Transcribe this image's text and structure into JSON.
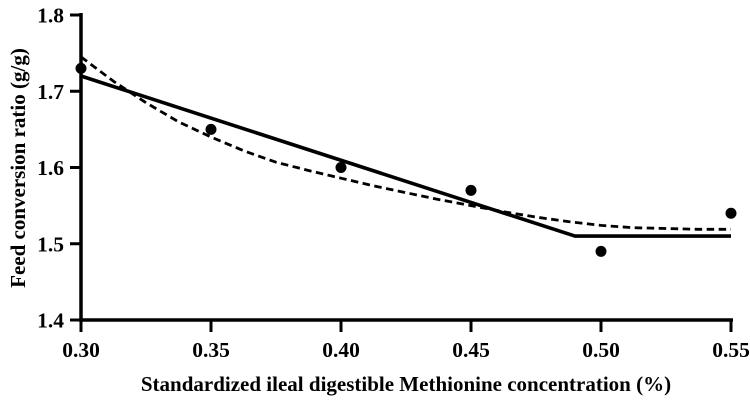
{
  "chart_data": {
    "type": "scatter",
    "title": "",
    "xlabel": "Standardized ileal digestible Methionine concentration (%)",
    "ylabel": "Feed conversion ratio (g/g)",
    "xlim": [
      0.3,
      0.55
    ],
    "ylim": [
      1.4,
      1.8
    ],
    "grid": false,
    "legend_position": "none",
    "axis_color": "#000000",
    "x_ticks": [
      0.3,
      0.35,
      0.4,
      0.45,
      0.5,
      0.55
    ],
    "x_tick_labels": [
      "0.30",
      "0.35",
      "0.40",
      "0.45",
      "0.50",
      "0.55"
    ],
    "y_ticks": [
      1.8,
      1.7,
      1.6,
      1.5,
      1.4
    ],
    "y_tick_labels": [
      "1.8",
      "1.7",
      "1.6",
      "1.5",
      "1.4"
    ],
    "series": [
      {
        "name": "observed-fcr",
        "type": "scatter",
        "marker": "filled-circle",
        "color": "#000000",
        "points": [
          [
            0.3,
            1.73
          ],
          [
            0.35,
            1.65
          ],
          [
            0.4,
            1.6
          ],
          [
            0.45,
            1.57
          ],
          [
            0.5,
            1.49
          ],
          [
            0.55,
            1.54
          ]
        ]
      },
      {
        "name": "broken-line-model",
        "type": "line",
        "style": "solid",
        "color": "#000000",
        "breakpoint_x": 0.49,
        "plateau_y": 1.51,
        "points": [
          [
            0.3,
            1.72
          ],
          [
            0.49,
            1.51
          ],
          [
            0.55,
            1.51
          ]
        ]
      },
      {
        "name": "quadratic-model",
        "type": "line",
        "style": "dashed",
        "color": "#000000",
        "points": [
          [
            0.3,
            1.745
          ],
          [
            0.3125,
            1.713
          ],
          [
            0.325,
            1.685
          ],
          [
            0.3375,
            1.66
          ],
          [
            0.35,
            1.64
          ],
          [
            0.3625,
            1.622
          ],
          [
            0.375,
            1.607
          ],
          [
            0.3875,
            1.596
          ],
          [
            0.4,
            1.586
          ],
          [
            0.4125,
            1.576
          ],
          [
            0.425,
            1.567
          ],
          [
            0.4375,
            1.558
          ],
          [
            0.45,
            1.55
          ],
          [
            0.4625,
            1.542
          ],
          [
            0.475,
            1.535
          ],
          [
            0.4875,
            1.529
          ],
          [
            0.5,
            1.524
          ],
          [
            0.5125,
            1.521
          ],
          [
            0.525,
            1.52
          ],
          [
            0.5375,
            1.519
          ],
          [
            0.55,
            1.519
          ]
        ]
      }
    ]
  }
}
